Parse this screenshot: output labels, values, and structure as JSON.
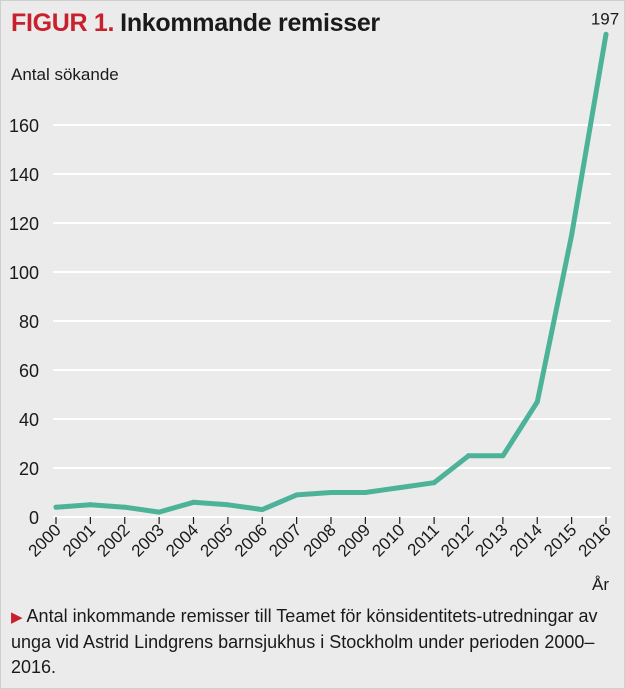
{
  "header": {
    "figure_label": "FIGUR 1.",
    "title": "Inkommande remisser"
  },
  "caption": {
    "marker": "▶",
    "text": "Antal inkommande remisser till Teamet för könsidentitets-utredningar av unga vid Astrid Lindgrens barnsjukhus i Stockholm under perioden 2000–2016."
  },
  "colors": {
    "line": "#4db398",
    "accent": "#c8202c",
    "grid": "#ffffff",
    "background": "#ebebeb",
    "text": "#1a1a1a"
  },
  "chart_data": {
    "type": "line",
    "title": "Inkommande remisser",
    "ylabel": "Antal sökande",
    "xlabel": "År",
    "categories": [
      "2000",
      "2001",
      "2002",
      "2003",
      "2004",
      "2005",
      "2006",
      "2007",
      "2008",
      "2009",
      "2010",
      "2011",
      "2012",
      "2013",
      "2014",
      "2015",
      "2016"
    ],
    "series": [
      {
        "values": [
          4,
          5,
          4,
          2,
          6,
          5,
          3,
          9,
          10,
          10,
          12,
          14,
          25,
          25,
          47,
          115,
          197
        ]
      }
    ],
    "y_ticks": [
      0,
      20,
      40,
      60,
      80,
      100,
      120,
      140,
      160
    ],
    "ylim": [
      0,
      197
    ],
    "grid": true,
    "annotations": [
      {
        "category": "2016",
        "text": "197"
      }
    ]
  }
}
